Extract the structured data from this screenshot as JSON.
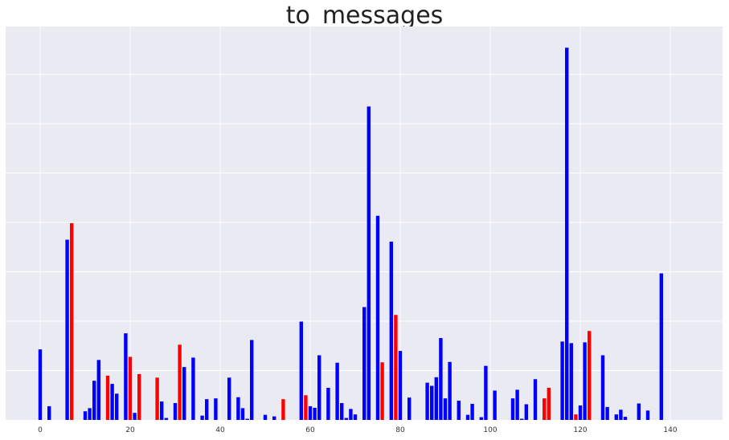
{
  "chart_data": {
    "type": "bar",
    "title": "to_messages",
    "xlabel": "",
    "ylabel": "",
    "xlim": [
      -3,
      150
    ],
    "ylim": [
      0,
      1
    ],
    "x_ticks": [
      0,
      20,
      40,
      60,
      80,
      100,
      120,
      140
    ],
    "y_tick_labels_shown": false,
    "y_gridlines": [
      0.126,
      0.252,
      0.378,
      0.504,
      0.63,
      0.756,
      0.882
    ],
    "grid": true,
    "background": "#eaeaf2",
    "colors": {
      "default": "#0000ff",
      "highlight": "#ff0000"
    },
    "bars": [
      {
        "x": 0,
        "value": 0.18,
        "color": "#0000ff"
      },
      {
        "x": 2,
        "value": 0.035,
        "color": "#0000ff"
      },
      {
        "x": 6,
        "value": 0.46,
        "color": "#0000ff"
      },
      {
        "x": 7,
        "value": 0.502,
        "color": "#ff0000"
      },
      {
        "x": 10,
        "value": 0.022,
        "color": "#0000ff"
      },
      {
        "x": 11,
        "value": 0.03,
        "color": "#0000ff"
      },
      {
        "x": 12,
        "value": 0.1,
        "color": "#0000ff"
      },
      {
        "x": 13,
        "value": 0.153,
        "color": "#0000ff"
      },
      {
        "x": 15,
        "value": 0.113,
        "color": "#ff0000"
      },
      {
        "x": 16,
        "value": 0.092,
        "color": "#0000ff"
      },
      {
        "x": 17,
        "value": 0.067,
        "color": "#0000ff"
      },
      {
        "x": 19,
        "value": 0.221,
        "color": "#0000ff"
      },
      {
        "x": 20,
        "value": 0.161,
        "color": "#ff0000"
      },
      {
        "x": 21,
        "value": 0.018,
        "color": "#0000ff"
      },
      {
        "x": 22,
        "value": 0.117,
        "color": "#ff0000"
      },
      {
        "x": 26,
        "value": 0.108,
        "color": "#ff0000"
      },
      {
        "x": 27,
        "value": 0.047,
        "color": "#0000ff"
      },
      {
        "x": 28,
        "value": 0.005,
        "color": "#0000ff"
      },
      {
        "x": 30,
        "value": 0.043,
        "color": "#0000ff"
      },
      {
        "x": 31,
        "value": 0.192,
        "color": "#ff0000"
      },
      {
        "x": 32,
        "value": 0.135,
        "color": "#0000ff"
      },
      {
        "x": 34,
        "value": 0.159,
        "color": "#0000ff"
      },
      {
        "x": 36,
        "value": 0.011,
        "color": "#0000ff"
      },
      {
        "x": 37,
        "value": 0.053,
        "color": "#0000ff"
      },
      {
        "x": 39,
        "value": 0.055,
        "color": "#0000ff"
      },
      {
        "x": 42,
        "value": 0.108,
        "color": "#0000ff"
      },
      {
        "x": 44,
        "value": 0.058,
        "color": "#0000ff"
      },
      {
        "x": 45,
        "value": 0.03,
        "color": "#0000ff"
      },
      {
        "x": 46,
        "value": 0.003,
        "color": "#0000ff"
      },
      {
        "x": 47,
        "value": 0.204,
        "color": "#0000ff"
      },
      {
        "x": 50,
        "value": 0.013,
        "color": "#0000ff"
      },
      {
        "x": 52,
        "value": 0.009,
        "color": "#0000ff"
      },
      {
        "x": 54,
        "value": 0.053,
        "color": "#ff0000"
      },
      {
        "x": 58,
        "value": 0.251,
        "color": "#0000ff"
      },
      {
        "x": 59,
        "value": 0.063,
        "color": "#ff0000"
      },
      {
        "x": 60,
        "value": 0.035,
        "color": "#0000ff"
      },
      {
        "x": 61,
        "value": 0.031,
        "color": "#0000ff"
      },
      {
        "x": 62,
        "value": 0.165,
        "color": "#0000ff"
      },
      {
        "x": 64,
        "value": 0.082,
        "color": "#0000ff"
      },
      {
        "x": 66,
        "value": 0.146,
        "color": "#0000ff"
      },
      {
        "x": 67,
        "value": 0.043,
        "color": "#0000ff"
      },
      {
        "x": 68,
        "value": 0.005,
        "color": "#0000ff"
      },
      {
        "x": 69,
        "value": 0.028,
        "color": "#0000ff"
      },
      {
        "x": 70,
        "value": 0.014,
        "color": "#0000ff"
      },
      {
        "x": 72,
        "value": 0.288,
        "color": "#0000ff"
      },
      {
        "x": 73,
        "value": 0.8,
        "color": "#0000ff"
      },
      {
        "x": 75,
        "value": 0.521,
        "color": "#0000ff"
      },
      {
        "x": 76,
        "value": 0.147,
        "color": "#ff0000"
      },
      {
        "x": 78,
        "value": 0.455,
        "color": "#0000ff"
      },
      {
        "x": 79,
        "value": 0.268,
        "color": "#ff0000"
      },
      {
        "x": 80,
        "value": 0.176,
        "color": "#0000ff"
      },
      {
        "x": 82,
        "value": 0.057,
        "color": "#0000ff"
      },
      {
        "x": 86,
        "value": 0.095,
        "color": "#0000ff"
      },
      {
        "x": 87,
        "value": 0.087,
        "color": "#0000ff"
      },
      {
        "x": 88,
        "value": 0.109,
        "color": "#0000ff"
      },
      {
        "x": 89,
        "value": 0.209,
        "color": "#0000ff"
      },
      {
        "x": 90,
        "value": 0.055,
        "color": "#0000ff"
      },
      {
        "x": 91,
        "value": 0.148,
        "color": "#0000ff"
      },
      {
        "x": 93,
        "value": 0.049,
        "color": "#0000ff"
      },
      {
        "x": 95,
        "value": 0.013,
        "color": "#0000ff"
      },
      {
        "x": 96,
        "value": 0.041,
        "color": "#0000ff"
      },
      {
        "x": 98,
        "value": 0.007,
        "color": "#0000ff"
      },
      {
        "x": 99,
        "value": 0.138,
        "color": "#0000ff"
      },
      {
        "x": 101,
        "value": 0.075,
        "color": "#0000ff"
      },
      {
        "x": 105,
        "value": 0.055,
        "color": "#0000ff"
      },
      {
        "x": 106,
        "value": 0.077,
        "color": "#0000ff"
      },
      {
        "x": 107,
        "value": 0.003,
        "color": "#0000ff"
      },
      {
        "x": 108,
        "value": 0.04,
        "color": "#0000ff"
      },
      {
        "x": 110,
        "value": 0.104,
        "color": "#0000ff"
      },
      {
        "x": 112,
        "value": 0.055,
        "color": "#ff0000"
      },
      {
        "x": 113,
        "value": 0.082,
        "color": "#ff0000"
      },
      {
        "x": 116,
        "value": 0.2,
        "color": "#0000ff"
      },
      {
        "x": 117,
        "value": 0.95,
        "color": "#0000ff"
      },
      {
        "x": 118,
        "value": 0.196,
        "color": "#0000ff"
      },
      {
        "x": 119,
        "value": 0.014,
        "color": "#ff0000"
      },
      {
        "x": 120,
        "value": 0.037,
        "color": "#0000ff"
      },
      {
        "x": 121,
        "value": 0.198,
        "color": "#0000ff"
      },
      {
        "x": 122,
        "value": 0.227,
        "color": "#ff0000"
      },
      {
        "x": 125,
        "value": 0.165,
        "color": "#0000ff"
      },
      {
        "x": 126,
        "value": 0.033,
        "color": "#0000ff"
      },
      {
        "x": 128,
        "value": 0.014,
        "color": "#0000ff"
      },
      {
        "x": 129,
        "value": 0.026,
        "color": "#0000ff"
      },
      {
        "x": 130,
        "value": 0.008,
        "color": "#0000ff"
      },
      {
        "x": 133,
        "value": 0.042,
        "color": "#0000ff"
      },
      {
        "x": 135,
        "value": 0.024,
        "color": "#0000ff"
      },
      {
        "x": 138,
        "value": 0.374,
        "color": "#0000ff"
      }
    ]
  }
}
